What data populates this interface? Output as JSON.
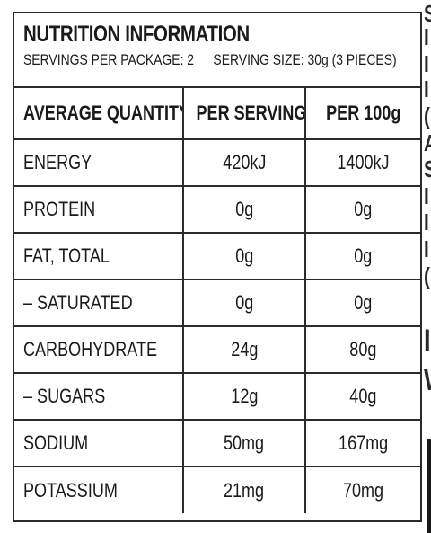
{
  "header": {
    "title": "NUTRITION INFORMATION",
    "servings_per_package": "SERVINGS PER PACKAGE: 2",
    "serving_size": "SERVING SIZE: 30g (3 PIECES)"
  },
  "columns": [
    "AVERAGE QUANTITY",
    "PER SERVING",
    "PER 100g"
  ],
  "rows": [
    {
      "label": "ENERGY",
      "per_serving": "420kJ",
      "per_100g": "1400kJ"
    },
    {
      "label": "PROTEIN",
      "per_serving": "0g",
      "per_100g": "0g"
    },
    {
      "label": "FAT, TOTAL",
      "per_serving": "0g",
      "per_100g": "0g"
    },
    {
      "label": "– SATURATED",
      "per_serving": "0g",
      "per_100g": "0g"
    },
    {
      "label": "CARBOHYDRATE",
      "per_serving": "24g",
      "per_100g": "80g"
    },
    {
      "label": "– SUGARS",
      "per_serving": "12g",
      "per_100g": "40g"
    },
    {
      "label": "SODIUM",
      "per_serving": "50mg",
      "per_100g": "167mg"
    },
    {
      "label": "POTASSIUM",
      "per_serving": "21mg",
      "per_100g": "70mg"
    }
  ]
}
